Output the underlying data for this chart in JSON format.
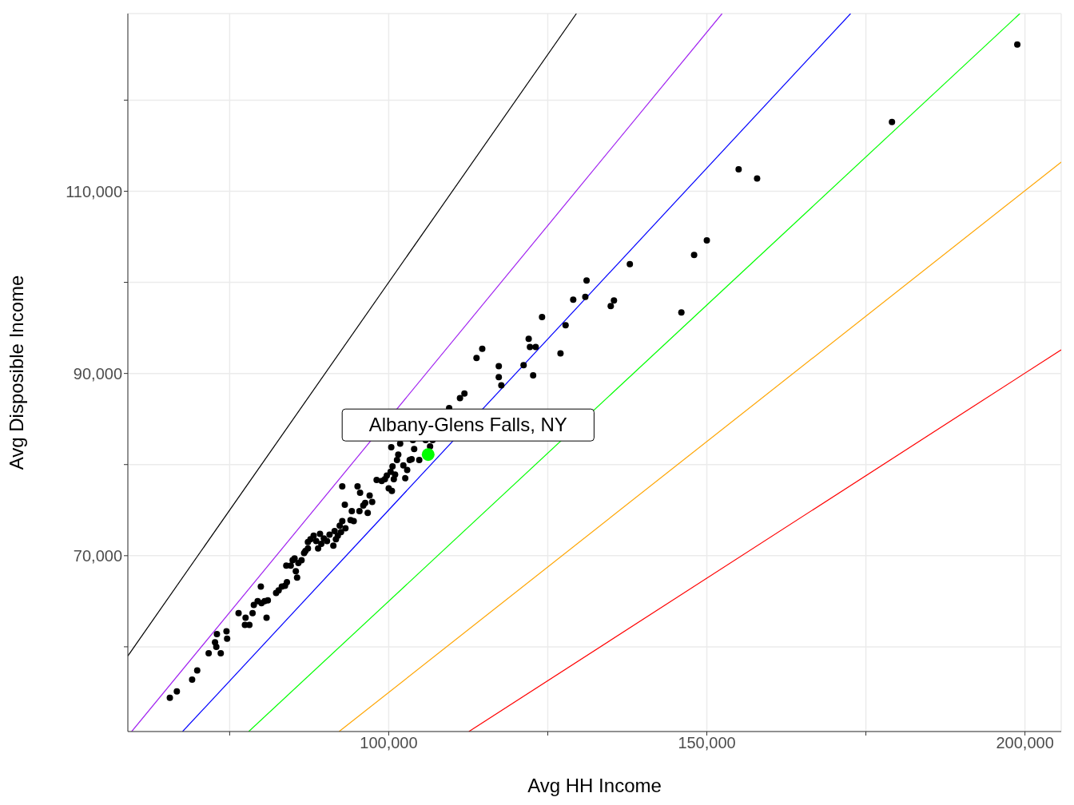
{
  "chart_data": {
    "type": "scatter",
    "xlabel": "Avg HH Income",
    "ylabel": "Avg Disposible Income",
    "xlim": [
      59000,
      205700
    ],
    "ylim": [
      50700,
      129500
    ],
    "xticks": [
      {
        "value": 75000,
        "label": null
      },
      {
        "value": 100000,
        "label": "100,000"
      },
      {
        "value": 125000,
        "label": null
      },
      {
        "value": 150000,
        "label": "150,000"
      },
      {
        "value": 175000,
        "label": null
      },
      {
        "value": 200000,
        "label": "200,000"
      }
    ],
    "yticks": [
      {
        "value": 60000,
        "label": null
      },
      {
        "value": 70000,
        "label": "70,000"
      },
      {
        "value": 80000,
        "label": null
      },
      {
        "value": 90000,
        "label": "90,000"
      },
      {
        "value": 100000,
        "label": null
      },
      {
        "value": 110000,
        "label": "110,000"
      },
      {
        "value": 120000,
        "label": null
      }
    ],
    "grid": true,
    "marker": "circle",
    "series": [
      {
        "type": "line",
        "marker": "none",
        "color": "#000000",
        "x": [
          59000,
          129500
        ],
        "values": [
          59000,
          129500
        ]
      },
      {
        "type": "line",
        "marker": "none",
        "color": "#a020f0",
        "x": [
          59600,
          152400
        ],
        "values": [
          50700,
          129500
        ]
      },
      {
        "type": "line",
        "marker": "none",
        "color": "#0000ff",
        "x": [
          67600,
          172600
        ],
        "values": [
          50700,
          129500
        ]
      },
      {
        "type": "line",
        "marker": "none",
        "color": "#00ff00",
        "x": [
          78000,
          199200
        ],
        "values": [
          50700,
          129500
        ]
      },
      {
        "type": "line",
        "marker": "none",
        "color": "#ffa500",
        "x": [
          92200,
          205700
        ],
        "values": [
          50700,
          113200
        ]
      },
      {
        "type": "line",
        "marker": "none",
        "color": "#ff0000",
        "x": [
          112600,
          205700
        ],
        "values": [
          50700,
          92600
        ]
      },
      {
        "color": "#000000",
        "x": [
          65600,
          66700,
          69100,
          69900,
          71700,
          72700,
          73000,
          72900,
          73600,
          74500,
          74600,
          76400,
          77400,
          77500,
          78100,
          78600,
          78800,
          79400,
          79900,
          80000,
          80500,
          80800,
          81000,
          82300,
          82700,
          83200,
          83700,
          84000,
          83900,
          84600,
          85200,
          85600,
          85400,
          85800,
          84900,
          86300,
          86700,
          86900,
          87300,
          87700,
          87300,
          88200,
          88600,
          88900,
          89200,
          89400,
          89800,
          90300,
          90700,
          91500,
          91700,
          91300,
          92000,
          92300,
          92700,
          92500,
          92700,
          93100,
          93200,
          94000,
          94200,
          94500,
          95100,
          95400,
          95500,
          96000,
          96300,
          96700,
          97000,
          97400,
          98100,
          98900,
          99400,
          99700,
          100000,
          100300,
          100400,
          100500,
          100600,
          100800,
          101000,
          101300,
          101500,
          101800,
          102300,
          102600,
          102900,
          103300,
          103600,
          104000,
          103800,
          104800,
          105800,
          106500,
          106900,
          109500,
          111200,
          111900,
          113800,
          114700,
          117300,
          117300,
          117700,
          121200,
          122000,
          122200,
          122700,
          123100,
          124100,
          127000,
          127800,
          129000,
          130900,
          131100,
          134900,
          135400,
          137900,
          146000,
          148000,
          150000,
          155000,
          157900,
          179100,
          198800
        ],
        "values": [
          54400,
          55100,
          56400,
          57400,
          59300,
          60500,
          61400,
          60000,
          59300,
          61700,
          60900,
          63700,
          62400,
          63200,
          62400,
          63700,
          64600,
          65000,
          66600,
          64800,
          65000,
          63200,
          65100,
          65900,
          66200,
          66600,
          66700,
          67100,
          68900,
          68900,
          69700,
          67600,
          68300,
          69200,
          69500,
          69500,
          70300,
          70500,
          71500,
          71800,
          70800,
          72200,
          71600,
          70800,
          72400,
          71300,
          71900,
          71600,
          72300,
          72700,
          71800,
          71100,
          72200,
          73300,
          73800,
          72600,
          77600,
          75600,
          73000,
          73900,
          74900,
          73800,
          77600,
          74900,
          76900,
          75500,
          75800,
          74700,
          76600,
          75900,
          78300,
          78200,
          78400,
          78800,
          77400,
          79200,
          81900,
          77100,
          79800,
          78400,
          78900,
          80500,
          81100,
          82300,
          79900,
          78500,
          79400,
          80500,
          80600,
          81700,
          82700,
          80500,
          82700,
          82000,
          82700,
          86200,
          87300,
          87800,
          91700,
          92700,
          90800,
          89600,
          88700,
          90900,
          93800,
          92900,
          89800,
          92900,
          96200,
          92200,
          95300,
          98100,
          98400,
          100200,
          97400,
          98000,
          102000,
          96700,
          103000,
          104600,
          112400,
          111400,
          117600,
          126100
        ]
      },
      {
        "color": "#00ff00",
        "x": [
          106200
        ],
        "values": [
          81100
        ]
      }
    ],
    "annotations": [
      {
        "text": "Albany-Glens Falls, NY",
        "x": 106200,
        "y": 81100
      }
    ]
  }
}
